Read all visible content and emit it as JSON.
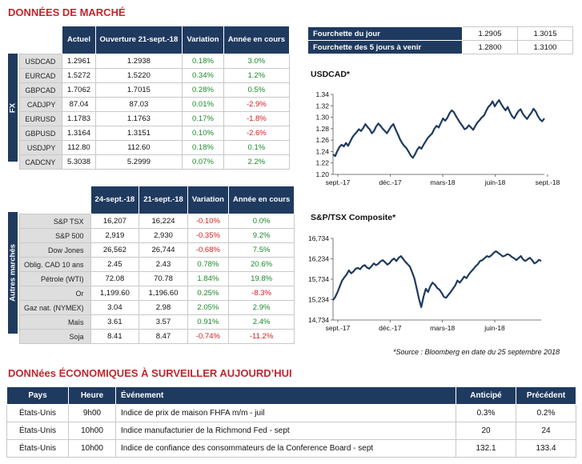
{
  "market_title": "DONNÉES DE MARCHÉ",
  "fx": {
    "side_label": "FX",
    "headers": [
      "Actuel",
      "Ouverture 21-sept.-18",
      "Variation",
      "Année en cours"
    ],
    "rows": [
      {
        "label": "USDCAD",
        "c1": "1.2961",
        "c2": "1.2938",
        "var": "0.18%",
        "ytd": "3.0%"
      },
      {
        "label": "EURCAD",
        "c1": "1.5272",
        "c2": "1.5220",
        "var": "0.34%",
        "ytd": "1.2%"
      },
      {
        "label": "GBPCAD",
        "c1": "1.7062",
        "c2": "1.7015",
        "var": "0.28%",
        "ytd": "0.5%"
      },
      {
        "label": "CADJPY",
        "c1": "87.04",
        "c2": "87.03",
        "var": "0.01%",
        "ytd": "-2.9%"
      },
      {
        "label": "EURUSD",
        "c1": "1.1783",
        "c2": "1.1763",
        "var": "0.17%",
        "ytd": "-1.8%"
      },
      {
        "label": "GBPUSD",
        "c1": "1.3164",
        "c2": "1.3151",
        "var": "0.10%",
        "ytd": "-2.6%"
      },
      {
        "label": "USDJPY",
        "c1": "112.80",
        "c2": "112.60",
        "var": "0.18%",
        "ytd": "0.1%"
      },
      {
        "label": "CADCNY",
        "c1": "5.3038",
        "c2": "5.2999",
        "var": "0.07%",
        "ytd": "2.2%"
      }
    ]
  },
  "other": {
    "side_label": "Autres marchés",
    "headers": [
      "24-sept.-18",
      "21-sept.-18",
      "Variation",
      "Année en cours"
    ],
    "rows": [
      {
        "label": "S&P TSX",
        "c1": "16,207",
        "c2": "16,224",
        "var": "-0.10%",
        "ytd": "0.0%"
      },
      {
        "label": "S&P 500",
        "c1": "2,919",
        "c2": "2,930",
        "var": "-0.35%",
        "ytd": "9.2%"
      },
      {
        "label": "Dow Jones",
        "c1": "26,562",
        "c2": "26,744",
        "var": "-0.68%",
        "ytd": "7.5%"
      },
      {
        "label": "Oblig. CAD 10 ans",
        "c1": "2.45",
        "c2": "2.43",
        "var": "0.78%",
        "ytd": "20.6%"
      },
      {
        "label": "Pétrole (WTI)",
        "c1": "72.08",
        "c2": "70.78",
        "var": "1.84%",
        "ytd": "19.8%"
      },
      {
        "label": "Or",
        "c1": "1,199.60",
        "c2": "1,196.60",
        "var": "0.25%",
        "ytd": "-8.3%"
      },
      {
        "label": "Gaz nat. (NYMEX)",
        "c1": "3.04",
        "c2": "2.98",
        "var": "2.05%",
        "ytd": "2.9%"
      },
      {
        "label": "Maïs",
        "c1": "3.61",
        "c2": "3.57",
        "var": "0.91%",
        "ytd": "2.4%"
      },
      {
        "label": "Soja",
        "c1": "8.41",
        "c2": "8.47",
        "var": "-0.74%",
        "ytd": "-11.2%"
      }
    ]
  },
  "ranges": [
    {
      "label": "Fourchette du jour",
      "low": "1.2905",
      "high": "1.3015"
    },
    {
      "label": "Fourchette des 5 jours à venir",
      "low": "1.2800",
      "high": "1.3100"
    }
  ],
  "source_note": "*Source : Bloomberg en date du  25 septembre 2018",
  "eco_title": "DONNées ÉCONOMIQUES À SURVEILLER AUJOURD’HUI",
  "eco": {
    "headers": [
      "Pays",
      "Heure",
      "Événement",
      "Anticipé",
      "Précédent"
    ],
    "rows": [
      {
        "pays": "États-Unis",
        "heure": "9h00",
        "event": "Indice de prix de maison FHFA m/m - juil",
        "anticipe": "0.3%",
        "precedent": "0.2%"
      },
      {
        "pays": "États-Unis",
        "heure": "10h00",
        "event": "Indice manufacturier de la Richmond Fed - sept",
        "anticipe": "20",
        "precedent": "24"
      },
      {
        "pays": "États-Unis",
        "heure": "10h00",
        "event": "Indice de confiance des consommateurs de la Conference Board - sept",
        "anticipe": "132.1",
        "precedent": "133.4"
      }
    ]
  },
  "chart_data": [
    {
      "type": "line",
      "title": "USDCAD*",
      "x_ticks": [
        "sept.-17",
        "déc.-17",
        "mars-18",
        "juin-18",
        "sept.-18"
      ],
      "ylim": [
        1.2,
        1.34
      ],
      "y_ticks": [
        "1.20",
        "1.22",
        "1.24",
        "1.26",
        "1.28",
        "1.30",
        "1.32",
        "1.34"
      ],
      "color": "#1f3a5f",
      "series": [
        {
          "values": [
            1.235,
            1.232,
            1.241,
            1.248,
            1.252,
            1.249,
            1.255,
            1.25,
            1.258,
            1.265,
            1.27,
            1.274,
            1.279,
            1.276,
            1.281,
            1.288,
            1.283,
            1.279,
            1.272,
            1.276,
            1.284,
            1.289,
            1.285,
            1.28,
            1.276,
            1.272,
            1.278,
            1.284,
            1.288,
            1.279,
            1.271,
            1.262,
            1.255,
            1.25,
            1.246,
            1.24,
            1.233,
            1.229,
            1.235,
            1.243,
            1.248,
            1.245,
            1.252,
            1.258,
            1.264,
            1.268,
            1.272,
            1.28,
            1.285,
            1.282,
            1.29,
            1.298,
            1.294,
            1.299,
            1.307,
            1.312,
            1.309,
            1.302,
            1.296,
            1.29,
            1.285,
            1.279,
            1.281,
            1.286,
            1.282,
            1.278,
            1.285,
            1.291,
            1.295,
            1.3,
            1.303,
            1.311,
            1.318,
            1.322,
            1.328,
            1.319,
            1.325,
            1.33,
            1.323,
            1.317,
            1.312,
            1.318,
            1.309,
            1.302,
            1.298,
            1.305,
            1.311,
            1.314,
            1.306,
            1.301,
            1.297,
            1.303,
            1.308,
            1.315,
            1.31,
            1.302,
            1.296,
            1.293,
            1.298
          ]
        }
      ]
    },
    {
      "type": "line",
      "title": "S&P/TSX Composite*",
      "x_ticks": [
        "sept.-17",
        "déc.-17",
        "mars-18",
        "juin-18"
      ],
      "ylim": [
        14734,
        16734
      ],
      "y_ticks": [
        "14,734",
        "15,234",
        "15,734",
        "16,234",
        "16,734"
      ],
      "color": "#1f3a5f",
      "series": [
        {
          "values": [
            15220,
            15300,
            15420,
            15560,
            15700,
            15780,
            15850,
            15950,
            15880,
            15920,
            15990,
            16010,
            15980,
            16050,
            16080,
            16020,
            15990,
            16050,
            16120,
            16080,
            16110,
            16170,
            16200,
            16150,
            16090,
            16130,
            16200,
            16240,
            16180,
            16260,
            16300,
            16230,
            16160,
            16100,
            16040,
            15900,
            15750,
            15500,
            15250,
            15050,
            15300,
            15500,
            15420,
            15560,
            15650,
            15600,
            15520,
            15480,
            15400,
            15300,
            15280,
            15350,
            15420,
            15500,
            15580,
            15700,
            15650,
            15720,
            15800,
            15760,
            15850,
            15920,
            15980,
            16050,
            16100,
            16180,
            16200,
            16250,
            16300,
            16280,
            16320,
            16380,
            16420,
            16380,
            16340,
            16290,
            16310,
            16350,
            16330,
            16280,
            16250,
            16200,
            16250,
            16300,
            16220,
            16180,
            16220,
            16260,
            16200,
            16120,
            16150,
            16210,
            16180
          ]
        }
      ]
    }
  ]
}
